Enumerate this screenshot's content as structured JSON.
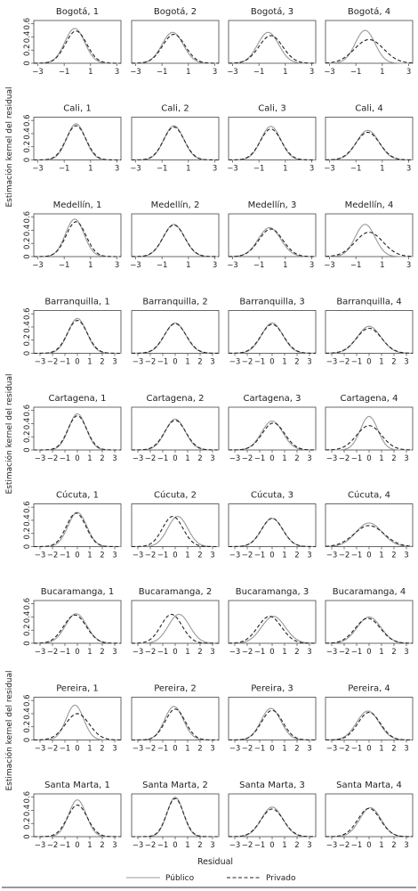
{
  "figure": {
    "ylabel": "Estimación kernel del residual",
    "xlabel": "Residual",
    "legend": [
      {
        "name": "Público",
        "style": "solid",
        "color": "#999999"
      },
      {
        "name": "Privado",
        "style": "dashed",
        "color": "#222222"
      }
    ]
  },
  "chart_data": {
    "type": "line",
    "kind": "kernel-density small multiples",
    "ylim": [
      0,
      0.65
    ],
    "yticks": [
      "0",
      "0.2",
      "0.4",
      "0.6"
    ],
    "ylabel": "Estimación kernel del residual",
    "xlabel": "Residual",
    "legend_placement": "bottom",
    "series_names": [
      "Público",
      "Privado"
    ],
    "cities": [
      {
        "name": "Bogotá",
        "xlim": [
          -3.3,
          3.3
        ],
        "xticks": [
          "−3",
          "−1",
          "1",
          "3"
        ],
        "xtick_values": [
          -3,
          -1,
          1,
          3
        ],
        "panels": [
          {
            "title": "Bogotá, 1",
            "publico": {
              "mean": -0.2,
              "sd": 0.75,
              "peak": 0.53
            },
            "privado": {
              "mean": -0.1,
              "sd": 0.8,
              "peak": 0.49
            }
          },
          {
            "title": "Bogotá, 2",
            "publico": {
              "mean": -0.2,
              "sd": 0.8,
              "peak": 0.47
            },
            "privado": {
              "mean": -0.1,
              "sd": 0.85,
              "peak": 0.44
            }
          },
          {
            "title": "Bogotá, 3",
            "publico": {
              "mean": -0.3,
              "sd": 0.8,
              "peak": 0.47
            },
            "privado": {
              "mean": -0.1,
              "sd": 0.9,
              "peak": 0.42
            }
          },
          {
            "title": "Bogotá, 4",
            "publico": {
              "mean": -0.3,
              "sd": 0.75,
              "peak": 0.5
            },
            "privado": {
              "mean": 0.0,
              "sd": 1.1,
              "peak": 0.36
            }
          }
        ]
      },
      {
        "name": "Cali",
        "xlim": [
          -3.3,
          3.3
        ],
        "xticks": [
          "−3",
          "−1",
          "1",
          "3"
        ],
        "xtick_values": [
          -3,
          -1,
          1,
          3
        ],
        "panels": [
          {
            "title": "Cali, 1",
            "publico": {
              "mean": -0.1,
              "sd": 0.7,
              "peak": 0.55
            },
            "privado": {
              "mean": -0.1,
              "sd": 0.75,
              "peak": 0.52
            }
          },
          {
            "title": "Cali, 2",
            "publico": {
              "mean": -0.1,
              "sd": 0.75,
              "peak": 0.52
            },
            "privado": {
              "mean": -0.1,
              "sd": 0.78,
              "peak": 0.5
            }
          },
          {
            "title": "Cali, 3",
            "publico": {
              "mean": -0.1,
              "sd": 0.75,
              "peak": 0.51
            },
            "privado": {
              "mean": -0.1,
              "sd": 0.8,
              "peak": 0.47
            }
          },
          {
            "title": "Cali, 4",
            "publico": {
              "mean": -0.1,
              "sd": 0.85,
              "peak": 0.45
            },
            "privado": {
              "mean": -0.1,
              "sd": 0.9,
              "peak": 0.42
            }
          }
        ]
      },
      {
        "name": "Medellín",
        "xlim": [
          -3.3,
          3.3
        ],
        "xticks": [
          "−3",
          "−1",
          "1",
          "3"
        ],
        "xtick_values": [
          -3,
          -1,
          1,
          3
        ],
        "panels": [
          {
            "title": "Medellín, 1",
            "publico": {
              "mean": -0.2,
              "sd": 0.7,
              "peak": 0.57
            },
            "privado": {
              "mean": -0.1,
              "sd": 0.75,
              "peak": 0.53
            }
          },
          {
            "title": "Medellín, 2",
            "publico": {
              "mean": -0.1,
              "sd": 0.8,
              "peak": 0.49
            },
            "privado": {
              "mean": -0.1,
              "sd": 0.82,
              "peak": 0.48
            }
          },
          {
            "title": "Medellín, 3",
            "publico": {
              "mean": -0.2,
              "sd": 0.85,
              "peak": 0.44
            },
            "privado": {
              "mean": -0.1,
              "sd": 0.9,
              "peak": 0.42
            }
          },
          {
            "title": "Medellín, 4",
            "publico": {
              "mean": -0.3,
              "sd": 0.75,
              "peak": 0.49
            },
            "privado": {
              "mean": 0.0,
              "sd": 1.05,
              "peak": 0.37
            }
          }
        ]
      },
      {
        "name": "Barranquilla",
        "xlim": [
          -3.5,
          3.5
        ],
        "xticks": [
          "−3",
          "−2",
          "−1",
          "0",
          "1",
          "2",
          "3"
        ],
        "xtick_values": [
          -3,
          -2,
          -1,
          0,
          1,
          2,
          3
        ],
        "panels": [
          {
            "title": "Barranquilla, 1",
            "publico": {
              "mean": 0.0,
              "sd": 0.75,
              "peak": 0.53
            },
            "privado": {
              "mean": 0.0,
              "sd": 0.8,
              "peak": 0.5
            }
          },
          {
            "title": "Barranquilla, 2",
            "publico": {
              "mean": 0.0,
              "sd": 0.85,
              "peak": 0.46
            },
            "privado": {
              "mean": 0.0,
              "sd": 0.88,
              "peak": 0.45
            }
          },
          {
            "title": "Barranquilla, 3",
            "publico": {
              "mean": 0.0,
              "sd": 0.85,
              "peak": 0.46
            },
            "privado": {
              "mean": 0.0,
              "sd": 0.9,
              "peak": 0.44
            }
          },
          {
            "title": "Barranquilla, 4",
            "publico": {
              "mean": 0.0,
              "sd": 0.95,
              "peak": 0.41
            },
            "privado": {
              "mean": 0.0,
              "sd": 1.0,
              "peak": 0.38
            }
          }
        ]
      },
      {
        "name": "Cartagena",
        "xlim": [
          -3.5,
          3.5
        ],
        "xticks": [
          "−3",
          "−2",
          "−1",
          "0",
          "1",
          "2",
          "3"
        ],
        "xtick_values": [
          -3,
          -2,
          -1,
          0,
          1,
          2,
          3
        ],
        "panels": [
          {
            "title": "Cartagena, 1",
            "publico": {
              "mean": 0.0,
              "sd": 0.7,
              "peak": 0.55
            },
            "privado": {
              "mean": 0.0,
              "sd": 0.75,
              "peak": 0.52
            }
          },
          {
            "title": "Cartagena, 2",
            "publico": {
              "mean": 0.0,
              "sd": 0.8,
              "peak": 0.47
            },
            "privado": {
              "mean": 0.0,
              "sd": 0.85,
              "peak": 0.45
            }
          },
          {
            "title": "Cartagena, 3",
            "publico": {
              "mean": 0.0,
              "sd": 0.85,
              "peak": 0.44
            },
            "privado": {
              "mean": 0.1,
              "sd": 0.9,
              "peak": 0.41
            }
          },
          {
            "title": "Cartagena, 4",
            "publico": {
              "mean": 0.0,
              "sd": 0.7,
              "peak": 0.51
            },
            "privado": {
              "mean": 0.0,
              "sd": 1.0,
              "peak": 0.37
            }
          }
        ]
      },
      {
        "name": "Cúcuta",
        "xlim": [
          -3.5,
          3.5
        ],
        "xticks": [
          "−3",
          "−2",
          "−1",
          "0",
          "1",
          "2",
          "3"
        ],
        "xtick_values": [
          -3,
          -2,
          -1,
          0,
          1,
          2,
          3
        ],
        "panels": [
          {
            "title": "Cúcuta, 1",
            "publico": {
              "mean": 0.0,
              "sd": 0.75,
              "peak": 0.52
            },
            "privado": {
              "mean": -0.1,
              "sd": 0.78,
              "peak": 0.51
            }
          },
          {
            "title": "Cúcuta, 2",
            "publico": {
              "mean": 0.2,
              "sd": 0.8,
              "peak": 0.46
            },
            "privado": {
              "mean": -0.2,
              "sd": 0.82,
              "peak": 0.46
            }
          },
          {
            "title": "Cúcuta, 3",
            "publico": {
              "mean": 0.0,
              "sd": 0.85,
              "peak": 0.43
            },
            "privado": {
              "mean": 0.0,
              "sd": 0.85,
              "peak": 0.43
            }
          },
          {
            "title": "Cúcuta, 4",
            "publico": {
              "mean": 0.0,
              "sd": 1.05,
              "peak": 0.36
            },
            "privado": {
              "mean": 0.0,
              "sd": 1.2,
              "peak": 0.32
            }
          }
        ]
      },
      {
        "name": "Bucaramanga",
        "xlim": [
          -3.5,
          3.5
        ],
        "xticks": [
          "−3",
          "−2",
          "−1",
          "0",
          "1",
          "2",
          "3"
        ],
        "xtick_values": [
          -3,
          -2,
          -1,
          0,
          1,
          2,
          3
        ],
        "panels": [
          {
            "title": "Bucaramanga, 1",
            "publico": {
              "mean": -0.1,
              "sd": 0.85,
              "peak": 0.45
            },
            "privado": {
              "mean": -0.2,
              "sd": 0.9,
              "peak": 0.43
            }
          },
          {
            "title": "Bucaramanga, 2",
            "publico": {
              "mean": 0.3,
              "sd": 0.85,
              "peak": 0.44
            },
            "privado": {
              "mean": -0.3,
              "sd": 0.85,
              "peak": 0.44
            }
          },
          {
            "title": "Bucaramanga, 3",
            "publico": {
              "mean": 0.1,
              "sd": 0.95,
              "peak": 0.41
            },
            "privado": {
              "mean": -0.2,
              "sd": 0.95,
              "peak": 0.41
            }
          },
          {
            "title": "Bucaramanga, 4",
            "publico": {
              "mean": 0.0,
              "sd": 0.95,
              "peak": 0.4
            },
            "privado": {
              "mean": -0.1,
              "sd": 1.0,
              "peak": 0.38
            }
          }
        ]
      },
      {
        "name": "Pereira",
        "xlim": [
          -3.5,
          3.5
        ],
        "xticks": [
          "−3",
          "−2",
          "−1",
          "0",
          "1",
          "2",
          "3"
        ],
        "xtick_values": [
          -3,
          -2,
          -1,
          0,
          1,
          2,
          3
        ],
        "panels": [
          {
            "title": "Pereira, 1",
            "publico": {
              "mean": -0.2,
              "sd": 0.7,
              "peak": 0.53
            },
            "privado": {
              "mean": 0.0,
              "sd": 0.95,
              "peak": 0.4
            }
          },
          {
            "title": "Pereira, 2",
            "publico": {
              "mean": -0.1,
              "sd": 0.75,
              "peak": 0.51
            },
            "privado": {
              "mean": 0.0,
              "sd": 0.8,
              "peak": 0.47
            }
          },
          {
            "title": "Pereira, 3",
            "publico": {
              "mean": -0.1,
              "sd": 0.8,
              "peak": 0.48
            },
            "privado": {
              "mean": 0.0,
              "sd": 0.85,
              "peak": 0.45
            }
          },
          {
            "title": "Pereira, 4",
            "publico": {
              "mean": -0.1,
              "sd": 0.9,
              "peak": 0.44
            },
            "privado": {
              "mean": 0.0,
              "sd": 0.9,
              "peak": 0.42
            }
          }
        ]
      },
      {
        "name": "Santa Marta",
        "xlim": [
          -3.5,
          3.5
        ],
        "xticks": [
          "−3",
          "−2",
          "−1",
          "0",
          "1",
          "2",
          "3"
        ],
        "xtick_values": [
          -3,
          -2,
          -1,
          0,
          1,
          2,
          3
        ],
        "panels": [
          {
            "title": "Santa Marta, 1",
            "publico": {
              "mean": 0.0,
              "sd": 0.7,
              "peak": 0.56
            },
            "privado": {
              "mean": 0.0,
              "sd": 0.8,
              "peak": 0.48
            }
          },
          {
            "title": "Santa Marta, 2",
            "publico": {
              "mean": 0.0,
              "sd": 0.65,
              "peak": 0.6
            },
            "privado": {
              "mean": 0.0,
              "sd": 0.68,
              "peak": 0.58
            }
          },
          {
            "title": "Santa Marta, 3",
            "publico": {
              "mean": 0.0,
              "sd": 0.85,
              "peak": 0.45
            },
            "privado": {
              "mean": 0.0,
              "sd": 0.9,
              "peak": 0.42
            }
          },
          {
            "title": "Santa Marta, 4",
            "publico": {
              "mean": 0.1,
              "sd": 0.85,
              "peak": 0.44
            },
            "privado": {
              "mean": 0.0,
              "sd": 0.9,
              "peak": 0.43
            }
          }
        ]
      }
    ]
  }
}
